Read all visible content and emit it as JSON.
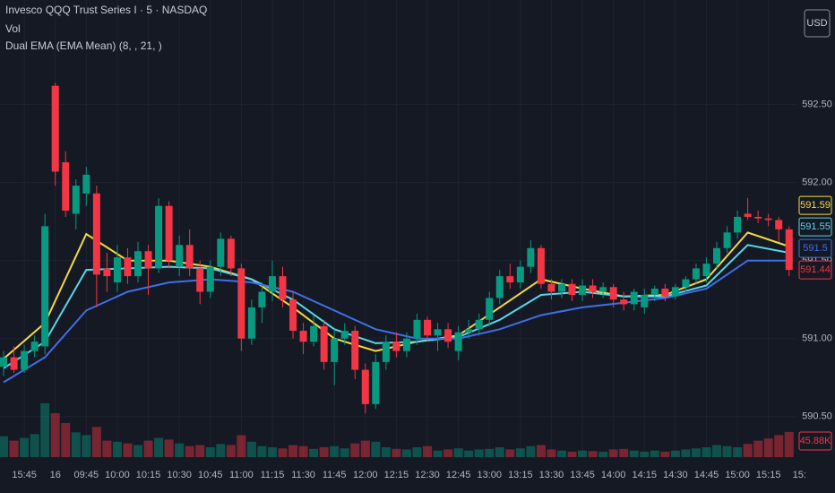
{
  "chart_data": {
    "type": "candlestick",
    "title": "Invesco QQQ Trust Series I · 5 · NASDAQ",
    "indicator": "Dual EMA (EMA Mean) (8, , 21, )",
    "currency": "USD",
    "up_color": "#089981",
    "down_color": "#f23645",
    "grid": true,
    "xlim": [
      -0.35,
      76.8
    ],
    "ylim": [
      590.24,
      593.17
    ],
    "vlim": [
      0,
      150
    ],
    "xticks": [
      {
        "value": 2,
        "label": "15:45"
      },
      {
        "value": 5,
        "label": "16"
      },
      {
        "value": 8,
        "label": "09:45"
      },
      {
        "value": 11,
        "label": "10:00"
      },
      {
        "value": 14,
        "label": "10:15"
      },
      {
        "value": 17,
        "label": "10:30"
      },
      {
        "value": 20,
        "label": "10:45"
      },
      {
        "value": 23,
        "label": "11:00"
      },
      {
        "value": 26,
        "label": "11:15"
      },
      {
        "value": 29,
        "label": "11:30"
      },
      {
        "value": 32,
        "label": "11:45"
      },
      {
        "value": 35,
        "label": "12:00"
      },
      {
        "value": 38,
        "label": "12:15"
      },
      {
        "value": 41,
        "label": "12:30"
      },
      {
        "value": 44,
        "label": "12:45"
      },
      {
        "value": 47,
        "label": "13:00"
      },
      {
        "value": 50,
        "label": "13:15"
      },
      {
        "value": 53,
        "label": "13:30"
      },
      {
        "value": 56,
        "label": "13:45"
      },
      {
        "value": 59,
        "label": "14:00"
      },
      {
        "value": 62,
        "label": "14:15"
      },
      {
        "value": 65,
        "label": "14:30"
      },
      {
        "value": 68,
        "label": "14:45"
      },
      {
        "value": 71,
        "label": "15:00"
      },
      {
        "value": 74,
        "label": "15:15"
      },
      {
        "value": 77,
        "label": "15:"
      }
    ],
    "yticks": [
      {
        "value": 590.5,
        "label": "590.50"
      },
      {
        "value": 591,
        "label": "591.00"
      },
      {
        "value": 591.5,
        "label": "591.50"
      },
      {
        "value": 592,
        "label": "592.00"
      },
      {
        "value": 592.5,
        "label": "592.50"
      }
    ],
    "open": [
      590.82,
      590.88,
      590.8,
      590.92,
      590.95,
      592.62,
      592.13,
      591.8,
      591.93,
      591.93,
      591.45,
      591.36,
      591.52,
      591.4,
      591.56,
      591.45,
      591.85,
      591.46,
      591.6,
      591.45,
      591.3,
      591.46,
      591.64,
      591.45,
      591.0,
      591.2,
      591.3,
      591.4,
      591.25,
      591.05,
      590.98,
      591.08,
      590.85,
      591.0,
      591.05,
      590.8,
      590.58,
      590.85,
      590.98,
      590.92,
      591.0,
      591.12,
      591.02,
      591.06,
      590.92,
      591.04,
      591.06,
      591.12,
      591.26,
      591.4,
      591.36,
      591.46,
      591.58,
      591.35,
      591.3,
      591.35,
      591.28,
      591.34,
      591.3,
      591.33,
      591.25,
      591.22,
      591.2,
      591.28,
      591.32,
      591.27,
      591.33,
      591.38,
      591.4,
      591.48,
      591.58,
      591.68,
      591.8,
      591.78,
      591.77,
      591.76,
      591.7
    ],
    "high": [
      590.92,
      590.95,
      590.96,
      591.02,
      591.8,
      592.64,
      592.2,
      592.02,
      592.1,
      591.98,
      591.55,
      591.6,
      591.58,
      591.62,
      591.6,
      591.9,
      591.88,
      591.66,
      591.7,
      591.5,
      591.5,
      591.68,
      591.66,
      591.48,
      591.25,
      591.36,
      591.5,
      591.46,
      591.3,
      591.1,
      591.15,
      591.12,
      591.06,
      591.1,
      591.08,
      590.84,
      590.9,
      591.02,
      591.04,
      591.04,
      591.16,
      591.14,
      591.1,
      591.1,
      591.08,
      591.12,
      591.16,
      591.3,
      591.44,
      591.48,
      591.5,
      591.63,
      591.6,
      591.38,
      591.38,
      591.38,
      591.38,
      591.38,
      591.36,
      591.35,
      591.3,
      591.32,
      591.32,
      591.34,
      591.35,
      591.35,
      591.4,
      591.48,
      591.52,
      591.62,
      591.72,
      591.82,
      591.9,
      591.82,
      591.8,
      591.78,
      591.72
    ],
    "low": [
      590.76,
      590.78,
      590.78,
      590.88,
      590.9,
      591.98,
      591.78,
      591.7,
      591.85,
      591.2,
      591.3,
      591.3,
      591.35,
      591.36,
      591.28,
      591.42,
      591.45,
      591.4,
      591.4,
      591.22,
      591.26,
      591.4,
      591.4,
      590.92,
      590.96,
      591.1,
      591.24,
      591.2,
      591.0,
      590.9,
      590.95,
      590.8,
      590.7,
      590.96,
      590.74,
      590.52,
      590.55,
      590.8,
      590.88,
      590.88,
      590.96,
      590.98,
      590.92,
      590.94,
      590.86,
      591.0,
      591.02,
      591.08,
      591.22,
      591.32,
      591.32,
      591.42,
      591.32,
      591.25,
      591.26,
      591.24,
      591.24,
      591.26,
      591.26,
      591.2,
      591.18,
      591.18,
      591.16,
      591.24,
      591.24,
      591.25,
      591.3,
      591.35,
      591.36,
      591.45,
      591.55,
      591.64,
      591.76,
      591.74,
      591.72,
      591.62,
      591.4
    ],
    "close": [
      590.88,
      590.8,
      590.92,
      590.98,
      591.72,
      592.07,
      591.82,
      591.98,
      592.05,
      591.41,
      591.4,
      591.52,
      591.4,
      591.56,
      591.45,
      591.85,
      591.5,
      591.6,
      591.45,
      591.3,
      591.46,
      591.64,
      591.45,
      591.0,
      591.2,
      591.3,
      591.4,
      591.25,
      591.05,
      590.98,
      591.08,
      590.85,
      591.0,
      591.05,
      590.8,
      590.58,
      590.85,
      590.98,
      590.92,
      591.0,
      591.12,
      591.02,
      591.06,
      590.98,
      591.04,
      591.06,
      591.12,
      591.26,
      591.4,
      591.36,
      591.46,
      591.58,
      591.35,
      591.3,
      591.35,
      591.28,
      591.34,
      591.3,
      591.33,
      591.25,
      591.22,
      591.3,
      591.28,
      591.32,
      591.27,
      591.33,
      591.38,
      591.45,
      591.48,
      591.58,
      591.68,
      591.78,
      591.78,
      591.77,
      591.76,
      591.7,
      591.44
    ],
    "volume": {
      "name": "Vol",
      "values": [
        38,
        30,
        35,
        42,
        98,
        80,
        62,
        45,
        40,
        55,
        30,
        28,
        25,
        22,
        30,
        35,
        32,
        25,
        20,
        22,
        18,
        24,
        22,
        40,
        28,
        20,
        18,
        16,
        22,
        20,
        15,
        18,
        20,
        16,
        25,
        30,
        28,
        18,
        15,
        14,
        18,
        20,
        12,
        14,
        16,
        12,
        14,
        15,
        18,
        14,
        16,
        20,
        22,
        14,
        12,
        10,
        12,
        11,
        10,
        14,
        15,
        12,
        10,
        12,
        10,
        12,
        14,
        16,
        18,
        22,
        20,
        18,
        24,
        30,
        34,
        40,
        45.88
      ],
      "value_labels": [
        null,
        null,
        null,
        null,
        null,
        null,
        null,
        null,
        null,
        null,
        null,
        null,
        null,
        null,
        null,
        null,
        null,
        null,
        null,
        null,
        null,
        null,
        null,
        null,
        null,
        null,
        null,
        null,
        null,
        null,
        null,
        null,
        null,
        null,
        null,
        null,
        null,
        null,
        null,
        null,
        null,
        null,
        null,
        null,
        null,
        null,
        null,
        null,
        null,
        null,
        null,
        null,
        null,
        null,
        null,
        null,
        null,
        null,
        null,
        null,
        null,
        null,
        null,
        null,
        null,
        null,
        null,
        null,
        null,
        null,
        null,
        null,
        null,
        null,
        null,
        null,
        "45.88K"
      ]
    },
    "series": [
      {
        "color": "#f5d942",
        "x": [
          0,
          4,
          8,
          12,
          16,
          20,
          24,
          28,
          32,
          36,
          40,
          44,
          48,
          52,
          56,
          60,
          64,
          68,
          72,
          76
        ],
        "values": [
          590.87,
          591.1,
          591.67,
          591.5,
          591.5,
          591.46,
          591.38,
          591.2,
          591.0,
          590.92,
          590.98,
          591.02,
          591.2,
          591.38,
          591.32,
          591.27,
          591.28,
          591.38,
          591.68,
          591.59
        ]
      },
      {
        "color": "#5ad7e8",
        "x": [
          0,
          4,
          8,
          12,
          16,
          20,
          24,
          28,
          32,
          36,
          40,
          44,
          48,
          52,
          56,
          60,
          64,
          68,
          72,
          76
        ],
        "values": [
          590.81,
          590.98,
          591.44,
          591.45,
          591.46,
          591.45,
          591.38,
          591.25,
          591.06,
          590.97,
          590.98,
          591.01,
          591.12,
          591.28,
          591.3,
          591.27,
          591.27,
          591.34,
          591.6,
          591.55
        ]
      },
      {
        "color": "#3f6fe8",
        "x": [
          0,
          4,
          8,
          12,
          16,
          20,
          24,
          28,
          32,
          36,
          40,
          44,
          48,
          52,
          56,
          60,
          64,
          68,
          72,
          76
        ],
        "values": [
          590.72,
          590.88,
          591.18,
          591.3,
          591.36,
          591.38,
          591.36,
          591.3,
          591.18,
          591.06,
          591.0,
          591.0,
          591.06,
          591.15,
          591.2,
          591.23,
          591.26,
          591.32,
          591.5,
          591.5
        ]
      }
    ]
  }
}
